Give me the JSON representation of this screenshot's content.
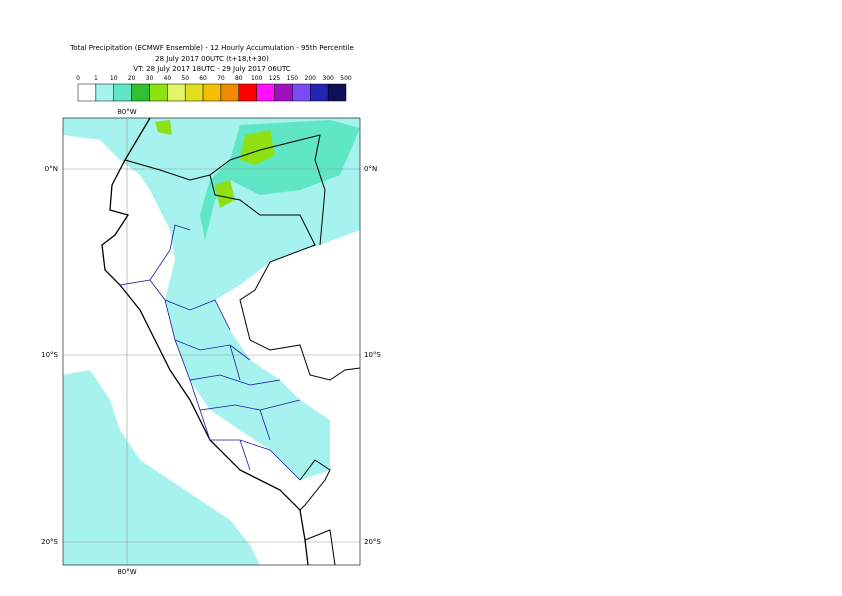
{
  "header": {
    "title": "Total Precipitation (ECMWF Ensemble) - 12 Hourly Accumulation - 95th Percentile",
    "base_time": "28 July 2017 00UTC (t+18,t+30)",
    "valid_time": "VT: 28 July 2017 18UTC - 29 July 2017 06UTC"
  },
  "legend": {
    "labels": [
      "0",
      "1",
      "10",
      "20",
      "30",
      "40",
      "50",
      "60",
      "70",
      "80",
      "100",
      "125",
      "150",
      "200",
      "300",
      "500"
    ],
    "colors": [
      "#ffffff",
      "#a5f2ee",
      "#5fe6c4",
      "#33bf33",
      "#8ee011",
      "#e3f56b",
      "#e0e021",
      "#f2c000",
      "#f28a00",
      "#ff0000",
      "#ff10ff",
      "#a010c0",
      "#7a4cf5",
      "#2424b0",
      "#101058"
    ]
  },
  "map": {
    "lon_label": "80°W",
    "lat_labels": [
      "0°N",
      "10°S",
      "20°S"
    ]
  }
}
